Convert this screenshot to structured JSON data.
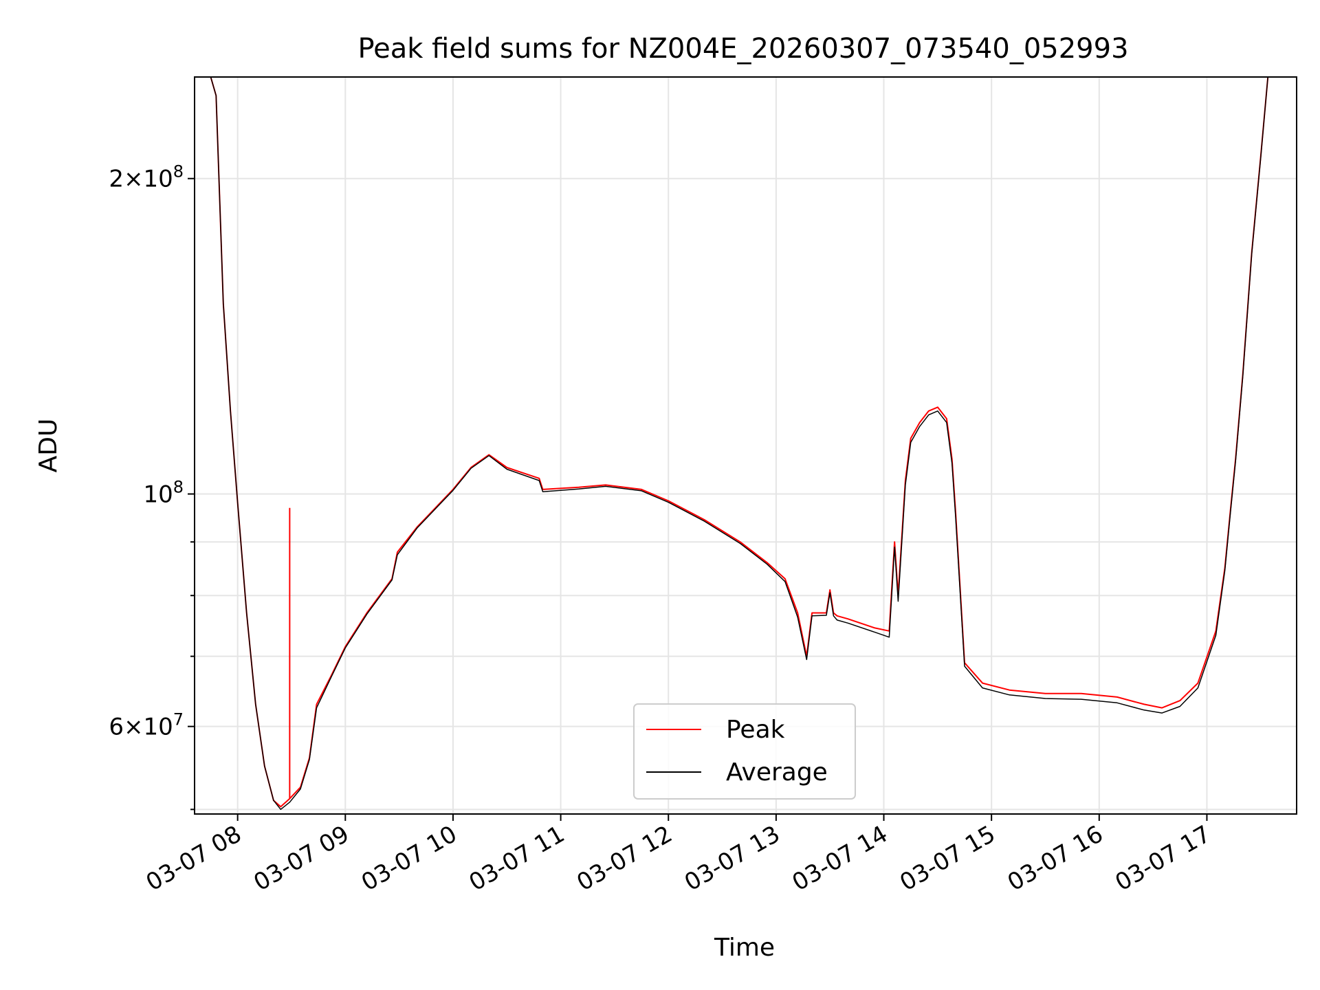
{
  "chart_data": {
    "type": "line",
    "title": "Peak field sums for NZ004E_20260307_073540_052993",
    "xlabel": "Time",
    "ylabel": "ADU",
    "yscale": "log",
    "xlim": [
      "2026-03-07 07:36",
      "2026-03-07 17:50"
    ],
    "ylim": [
      49500000,
      250000000
    ],
    "grid": true,
    "legend_position": "lower center",
    "x_tick_labels": [
      "03-07 08",
      "03-07 09",
      "03-07 10",
      "03-07 11",
      "03-07 12",
      "03-07 13",
      "03-07 14",
      "03-07 15",
      "03-07 16",
      "03-07 17"
    ],
    "x_tick_times": [
      "2026-03-07 08:00",
      "2026-03-07 09:00",
      "2026-03-07 10:00",
      "2026-03-07 11:00",
      "2026-03-07 12:00",
      "2026-03-07 13:00",
      "2026-03-07 14:00",
      "2026-03-07 15:00",
      "2026-03-07 16:00",
      "2026-03-07 17:00"
    ],
    "y_major_ticks": [
      {
        "value": 200000000,
        "mantissa": "2",
        "exponent": "8"
      },
      {
        "value": 100000000,
        "mantissa": "",
        "exponent": "8"
      },
      {
        "value": 60000000,
        "mantissa": "6",
        "exponent": "7"
      }
    ],
    "y_minor_ticks": [
      50000000,
      70000000,
      80000000,
      90000000,
      300000000
    ],
    "series": [
      {
        "name": "Peak",
        "color": "#ff0000",
        "spike": {
          "x": "2026-03-07 08:29",
          "y": 97000000
        },
        "x": [
          "2026-03-07 07:45",
          "2026-03-07 07:48",
          "2026-03-07 07:52",
          "2026-03-07 07:56",
          "2026-03-07 08:00",
          "2026-03-07 08:05",
          "2026-03-07 08:10",
          "2026-03-07 08:15",
          "2026-03-07 08:20",
          "2026-03-07 08:24",
          "2026-03-07 08:29",
          "2026-03-07 08:35",
          "2026-03-07 08:40",
          "2026-03-07 08:44",
          "2026-03-07 08:52",
          "2026-03-07 09:00",
          "2026-03-07 09:12",
          "2026-03-07 09:26",
          "2026-03-07 09:29",
          "2026-03-07 09:40",
          "2026-03-07 10:00",
          "2026-03-07 10:10",
          "2026-03-07 10:20",
          "2026-03-07 10:30",
          "2026-03-07 10:48",
          "2026-03-07 10:50",
          "2026-03-07 11:10",
          "2026-03-07 11:25",
          "2026-03-07 11:45",
          "2026-03-07 12:00",
          "2026-03-07 12:20",
          "2026-03-07 12:40",
          "2026-03-07 12:55",
          "2026-03-07 13:05",
          "2026-03-07 13:12",
          "2026-03-07 13:17",
          "2026-03-07 13:20",
          "2026-03-07 13:28",
          "2026-03-07 13:30",
          "2026-03-07 13:32",
          "2026-03-07 13:34",
          "2026-03-07 13:40",
          "2026-03-07 13:55",
          "2026-03-07 14:03",
          "2026-03-07 14:06",
          "2026-03-07 14:08",
          "2026-03-07 14:12",
          "2026-03-07 14:15",
          "2026-03-07 14:20",
          "2026-03-07 14:25",
          "2026-03-07 14:30",
          "2026-03-07 14:35",
          "2026-03-07 14:38",
          "2026-03-07 14:40",
          "2026-03-07 14:45",
          "2026-03-07 14:55",
          "2026-03-07 15:10",
          "2026-03-07 15:30",
          "2026-03-07 15:50",
          "2026-03-07 16:10",
          "2026-03-07 16:25",
          "2026-03-07 16:35",
          "2026-03-07 16:45",
          "2026-03-07 16:55",
          "2026-03-07 17:05",
          "2026-03-07 17:10",
          "2026-03-07 17:13",
          "2026-03-07 17:16",
          "2026-03-07 17:20",
          "2026-03-07 17:25",
          "2026-03-07 17:30",
          "2026-03-07 17:34"
        ],
        "y": [
          250000000,
          240000000,
          152000000,
          120000000,
          98000000,
          77000000,
          63000000,
          55000000,
          51000000,
          50300000,
          51200000,
          52500000,
          56000000,
          63000000,
          67000000,
          71500000,
          77000000,
          83000000,
          88000000,
          93000000,
          101000000,
          106000000,
          109000000,
          106000000,
          103500000,
          101000000,
          101500000,
          102000000,
          101000000,
          98500000,
          94500000,
          90000000,
          86000000,
          83000000,
          77000000,
          70000000,
          77000000,
          77000000,
          81000000,
          77000000,
          76500000,
          76000000,
          74500000,
          74000000,
          90000000,
          80000000,
          103000000,
          113000000,
          117000000,
          120000000,
          121000000,
          118000000,
          108000000,
          96000000,
          69000000,
          66000000,
          65000000,
          64500000,
          64500000,
          64000000,
          63000000,
          62500000,
          63500000,
          66000000,
          74000000,
          85000000,
          96000000,
          108000000,
          130000000,
          170000000,
          210000000,
          250000000
        ]
      },
      {
        "name": "Average",
        "color": "#000000",
        "x": [
          "2026-03-07 07:45",
          "2026-03-07 07:48",
          "2026-03-07 07:52",
          "2026-03-07 07:56",
          "2026-03-07 08:00",
          "2026-03-07 08:05",
          "2026-03-07 08:10",
          "2026-03-07 08:15",
          "2026-03-07 08:20",
          "2026-03-07 08:24",
          "2026-03-07 08:29",
          "2026-03-07 08:35",
          "2026-03-07 08:40",
          "2026-03-07 08:44",
          "2026-03-07 08:52",
          "2026-03-07 09:00",
          "2026-03-07 09:12",
          "2026-03-07 09:26",
          "2026-03-07 09:29",
          "2026-03-07 09:40",
          "2026-03-07 10:00",
          "2026-03-07 10:10",
          "2026-03-07 10:20",
          "2026-03-07 10:30",
          "2026-03-07 10:48",
          "2026-03-07 10:50",
          "2026-03-07 11:10",
          "2026-03-07 11:25",
          "2026-03-07 11:45",
          "2026-03-07 12:00",
          "2026-03-07 12:20",
          "2026-03-07 12:40",
          "2026-03-07 12:55",
          "2026-03-07 13:05",
          "2026-03-07 13:12",
          "2026-03-07 13:17",
          "2026-03-07 13:20",
          "2026-03-07 13:28",
          "2026-03-07 13:30",
          "2026-03-07 13:32",
          "2026-03-07 13:34",
          "2026-03-07 13:40",
          "2026-03-07 13:55",
          "2026-03-07 14:03",
          "2026-03-07 14:06",
          "2026-03-07 14:08",
          "2026-03-07 14:12",
          "2026-03-07 14:15",
          "2026-03-07 14:20",
          "2026-03-07 14:25",
          "2026-03-07 14:30",
          "2026-03-07 14:35",
          "2026-03-07 14:38",
          "2026-03-07 14:40",
          "2026-03-07 14:45",
          "2026-03-07 14:55",
          "2026-03-07 15:10",
          "2026-03-07 15:30",
          "2026-03-07 15:50",
          "2026-03-07 16:10",
          "2026-03-07 16:25",
          "2026-03-07 16:35",
          "2026-03-07 16:45",
          "2026-03-07 16:55",
          "2026-03-07 17:05",
          "2026-03-07 17:10",
          "2026-03-07 17:13",
          "2026-03-07 17:16",
          "2026-03-07 17:20",
          "2026-03-07 17:25",
          "2026-03-07 17:30",
          "2026-03-07 17:34"
        ],
        "y": [
          250000000,
          240000000,
          152000000,
          120000000,
          98000000,
          77000000,
          63000000,
          55000000,
          51000000,
          50000000,
          50800000,
          52300000,
          55800000,
          62500000,
          66800000,
          71300000,
          76800000,
          82800000,
          87500000,
          92800000,
          100800000,
          105800000,
          108800000,
          105600000,
          103000000,
          100500000,
          101100000,
          101700000,
          100700000,
          98200000,
          94200000,
          89700000,
          85700000,
          82500000,
          76300000,
          69500000,
          76500000,
          76600000,
          80500000,
          76500000,
          75800000,
          75300000,
          73800000,
          73000000,
          89000000,
          79000000,
          102000000,
          112000000,
          116000000,
          119000000,
          120000000,
          117000000,
          107000000,
          95000000,
          68500000,
          65300000,
          64300000,
          63800000,
          63700000,
          63200000,
          62200000,
          61800000,
          62700000,
          65300000,
          73300000,
          84500000,
          95500000,
          107500000,
          129500000,
          169500000,
          209500000,
          250000000
        ]
      }
    ]
  }
}
